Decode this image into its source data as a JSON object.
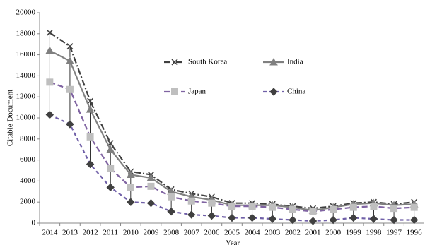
{
  "chart_data": {
    "type": "line",
    "x_label": "Year",
    "y_label": "Citable Document",
    "categories": [
      "2014",
      "2013",
      "2012",
      "2011",
      "2010",
      "2009",
      "2008",
      "2007",
      "2006",
      "2005",
      "2004",
      "2003",
      "2002",
      "2001",
      "2000",
      "1999",
      "1998",
      "1997",
      "1996"
    ],
    "series": [
      {
        "name": "South Korea",
        "color": "#404040",
        "marker": "x",
        "marker_color": "#404040",
        "dash": "9,3,2,3",
        "values": [
          18100,
          16800,
          11600,
          7600,
          4900,
          4600,
          3200,
          2800,
          2500,
          1900,
          1900,
          1800,
          1600,
          1400,
          1600,
          1900,
          2000,
          1800,
          2000
        ]
      },
      {
        "name": "India",
        "color": "#808080",
        "marker": "triangle",
        "marker_color": "#808080",
        "dash": "none",
        "values": [
          16400,
          15400,
          10800,
          7000,
          4600,
          4300,
          3000,
          2500,
          2200,
          1700,
          1700,
          1700,
          1500,
          1200,
          1500,
          1800,
          1900,
          1700,
          1800
        ]
      },
      {
        "name": "Japan",
        "color": "#8064a2",
        "marker": "square",
        "marker_color": "#bfbfbf",
        "dash": "8,4",
        "values": [
          13400,
          12700,
          8200,
          5200,
          3400,
          3500,
          2500,
          2100,
          1900,
          1600,
          1600,
          1500,
          1300,
          1100,
          1300,
          1500,
          1600,
          1400,
          1500
        ]
      },
      {
        "name": "China",
        "color": "#7060a8",
        "marker": "diamond",
        "marker_color": "#404040",
        "dash": "5,4",
        "values": [
          10300,
          9400,
          5600,
          3400,
          2000,
          1900,
          1100,
          800,
          700,
          500,
          500,
          400,
          300,
          200,
          300,
          500,
          400,
          300,
          300
        ]
      }
    ],
    "ylim": [
      0,
      20000
    ],
    "yticks": [
      0,
      2000,
      4000,
      6000,
      8000,
      10000,
      12000,
      14000,
      16000,
      18000,
      20000
    ],
    "grid": false,
    "high_low_lines": true
  }
}
